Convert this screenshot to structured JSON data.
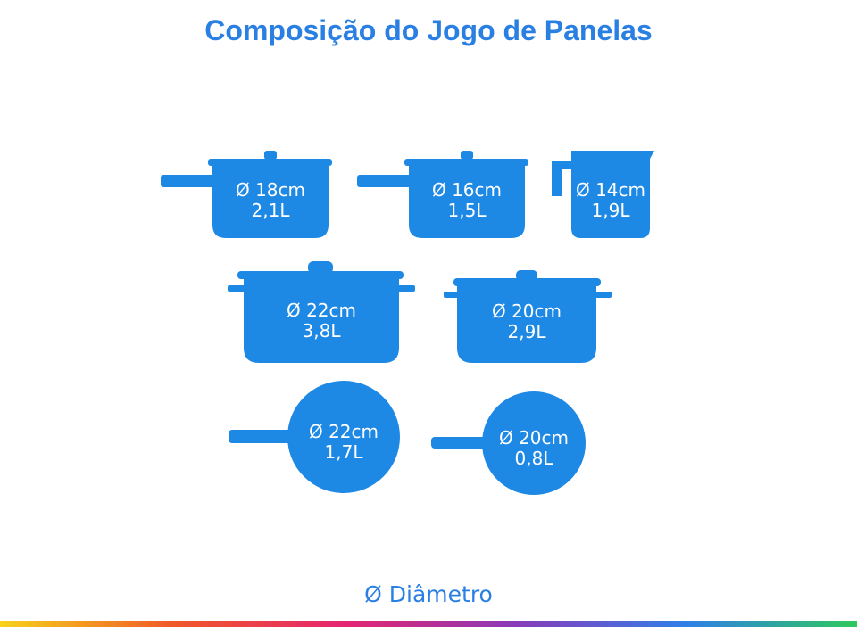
{
  "header": {
    "title": "Composição do Jogo de Panelas"
  },
  "items": [
    {
      "diameter": "Ø 18cm",
      "volume": "2,1L"
    },
    {
      "diameter": "Ø 16cm",
      "volume": "1,5L"
    },
    {
      "diameter": "Ø 14cm",
      "volume": "1,9L"
    },
    {
      "diameter": "Ø 22cm",
      "volume": "3,8L"
    },
    {
      "diameter": "Ø 20cm",
      "volume": "2,9L"
    },
    {
      "diameter": "Ø 22cm",
      "volume": "1,7L"
    },
    {
      "diameter": "Ø 20cm",
      "volume": "0,8L"
    }
  ],
  "legend": "Ø Diâmetro"
}
